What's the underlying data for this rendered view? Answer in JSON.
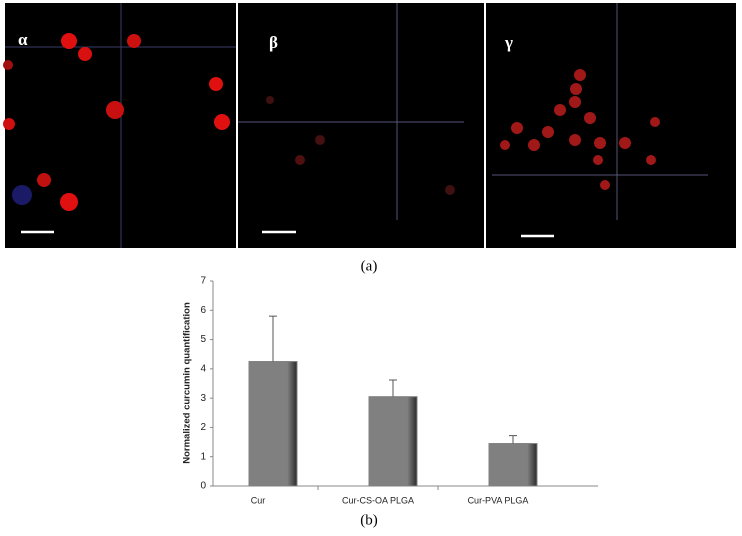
{
  "figure": {
    "panels": [
      "α",
      "β",
      "γ"
    ],
    "caption_a": "(a)",
    "caption_b": "(b)"
  },
  "chart_data": {
    "type": "bar",
    "ylabel": "Normalized curcumin quantification",
    "categories": [
      "Cur",
      "Cur-CS-OA PLGA",
      "Cur-PVA PLGA"
    ],
    "values": [
      4.25,
      3.05,
      1.45
    ],
    "errors": [
      1.55,
      0.57,
      0.27
    ],
    "color": "#808080",
    "ylim": [
      0,
      7
    ],
    "yticks": [
      0,
      1,
      2,
      3,
      4,
      5,
      6,
      7
    ],
    "grid": false
  }
}
